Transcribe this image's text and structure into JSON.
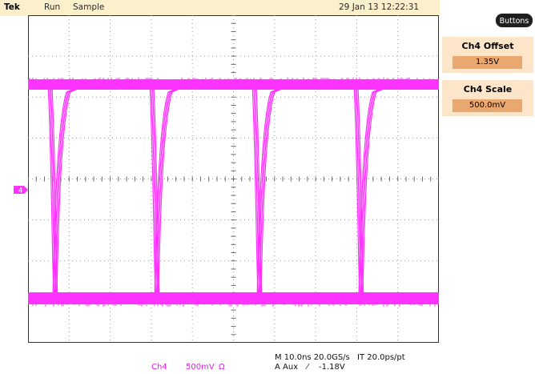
{
  "top_bar": {
    "brand": "Tek",
    "run_state": "Run",
    "acquisition_mode": "Sample",
    "datetime": "29 Jan 13 12:22:31"
  },
  "buttons_label": "Buttons",
  "menu": [
    {
      "label": "Ch4 Offset",
      "value": "1.35V"
    },
    {
      "label": "Ch4 Scale",
      "value": "500.0mV"
    }
  ],
  "channel_marker": "4",
  "bottom_status": {
    "channel": "Ch4",
    "scale": "500mV",
    "impedance_symbol": "Ω",
    "timebase": "M 10.0ns 20.0GS/s",
    "interval": "IT 20.0ps/pt",
    "trigger_source": "A  Aux",
    "trigger_slope_symbol": "⁄",
    "trigger_level": "-1.18V"
  },
  "colors": {
    "trace": "#ff33ff",
    "topbar": "#fcf0cc",
    "menu_box": "#fce5c8",
    "menu_value": "#e9a870",
    "trigger_marker": "#1e90ff"
  },
  "icons": {
    "trigger_position": "down-triangle-icon",
    "channel_ground": "ch4-ground-marker-icon"
  }
}
